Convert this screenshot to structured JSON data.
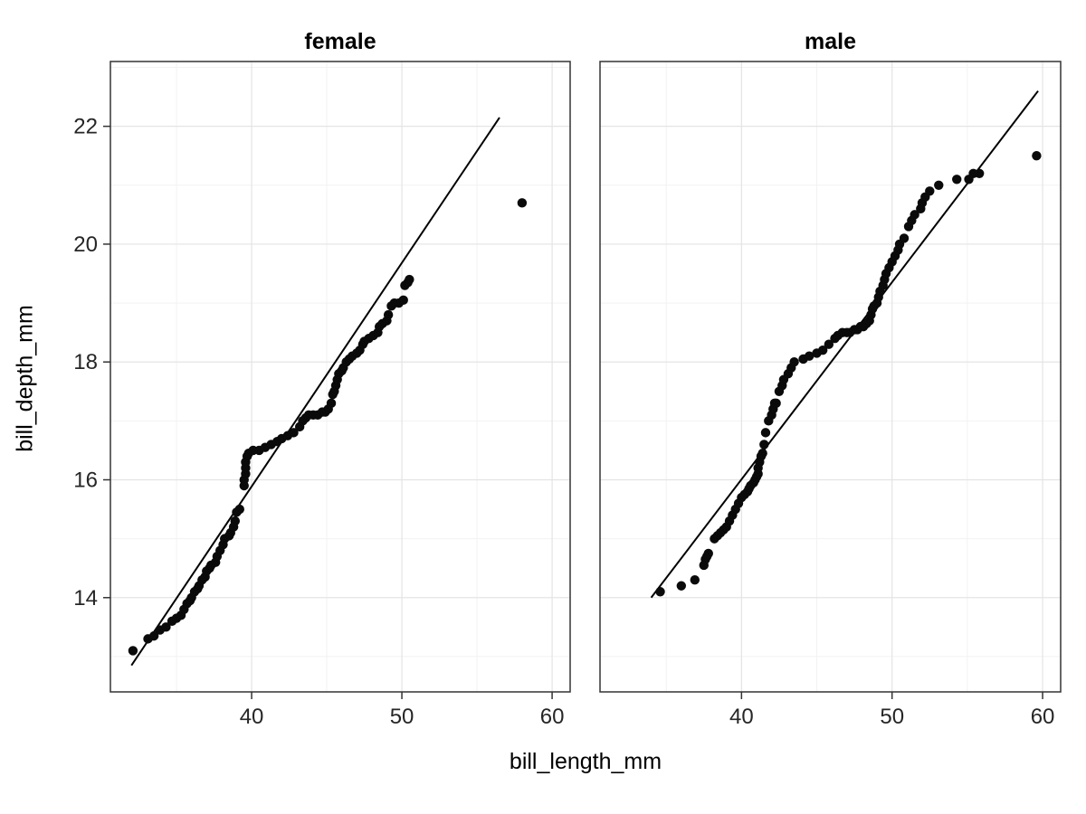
{
  "chart_data": {
    "type": "scatter",
    "title": "",
    "xlabel": "bill_length_mm",
    "ylabel": "bill_depth_mm",
    "x_domain": [
      30.6,
      61.2
    ],
    "y_domain": [
      12.4,
      23.1
    ],
    "x_ticks": [
      40,
      50,
      60
    ],
    "y_ticks": [
      14,
      16,
      18,
      20,
      22
    ],
    "grid": true,
    "legend": "none",
    "colors": {
      "point": "#0a0a0a",
      "line": "#000000",
      "grid_major": "#e4e4e4",
      "grid_minor": "#f2f2f2",
      "panel_border": "#333333",
      "tick": "#333333",
      "tick_label": "#262626",
      "background": "#ffffff"
    },
    "point_radius": 5.2,
    "facets": [
      {
        "title": "female",
        "line": {
          "x1": 32.0,
          "y1": 12.85,
          "x2": 56.5,
          "y2": 22.15
        },
        "points": [
          [
            32.1,
            13.1
          ],
          [
            33.1,
            13.3
          ],
          [
            33.5,
            13.35
          ],
          [
            33.9,
            13.45
          ],
          [
            34.3,
            13.5
          ],
          [
            34.7,
            13.6
          ],
          [
            35.0,
            13.65
          ],
          [
            35.3,
            13.7
          ],
          [
            35.5,
            13.8
          ],
          [
            35.7,
            13.9
          ],
          [
            35.9,
            13.95
          ],
          [
            36.0,
            14.0
          ],
          [
            36.2,
            14.1
          ],
          [
            36.4,
            14.15
          ],
          [
            36.5,
            14.2
          ],
          [
            36.7,
            14.3
          ],
          [
            36.9,
            14.35
          ],
          [
            37.0,
            14.45
          ],
          [
            37.2,
            14.5
          ],
          [
            37.3,
            14.55
          ],
          [
            37.6,
            14.6
          ],
          [
            37.7,
            14.7
          ],
          [
            37.9,
            14.8
          ],
          [
            38.1,
            14.9
          ],
          [
            38.2,
            15.0
          ],
          [
            38.5,
            15.05
          ],
          [
            38.6,
            15.1
          ],
          [
            38.8,
            15.2
          ],
          [
            38.9,
            15.3
          ],
          [
            39.0,
            15.45
          ],
          [
            39.2,
            15.5
          ],
          [
            39.5,
            15.9
          ],
          [
            39.5,
            16.0
          ],
          [
            39.6,
            16.1
          ],
          [
            39.6,
            16.2
          ],
          [
            39.6,
            16.3
          ],
          [
            39.7,
            16.4
          ],
          [
            39.8,
            16.45
          ],
          [
            40.1,
            16.5
          ],
          [
            40.5,
            16.5
          ],
          [
            40.9,
            16.55
          ],
          [
            41.3,
            16.6
          ],
          [
            41.7,
            16.65
          ],
          [
            42.0,
            16.7
          ],
          [
            42.4,
            16.75
          ],
          [
            42.8,
            16.8
          ],
          [
            43.2,
            16.9
          ],
          [
            43.4,
            17.0
          ],
          [
            43.6,
            17.05
          ],
          [
            43.8,
            17.1
          ],
          [
            44.1,
            17.1
          ],
          [
            44.4,
            17.1
          ],
          [
            44.7,
            17.15
          ],
          [
            44.9,
            17.15
          ],
          [
            45.1,
            17.2
          ],
          [
            45.3,
            17.3
          ],
          [
            45.4,
            17.45
          ],
          [
            45.5,
            17.5
          ],
          [
            45.6,
            17.6
          ],
          [
            45.7,
            17.7
          ],
          [
            45.8,
            17.8
          ],
          [
            46.0,
            17.85
          ],
          [
            46.1,
            17.9
          ],
          [
            46.3,
            18.0
          ],
          [
            46.5,
            18.05
          ],
          [
            46.7,
            18.1
          ],
          [
            47.0,
            18.15
          ],
          [
            47.2,
            18.2
          ],
          [
            47.4,
            18.3
          ],
          [
            47.5,
            18.35
          ],
          [
            47.8,
            18.4
          ],
          [
            48.1,
            18.45
          ],
          [
            48.4,
            18.5
          ],
          [
            48.5,
            18.6
          ],
          [
            48.7,
            18.65
          ],
          [
            49.0,
            18.7
          ],
          [
            49.1,
            18.8
          ],
          [
            49.3,
            18.95
          ],
          [
            49.5,
            19.0
          ],
          [
            49.8,
            19.0
          ],
          [
            50.1,
            19.05
          ],
          [
            50.2,
            19.3
          ],
          [
            50.4,
            19.35
          ],
          [
            50.5,
            19.4
          ],
          [
            58.0,
            20.7
          ]
        ]
      },
      {
        "title": "male",
        "line": {
          "x1": 34.0,
          "y1": 14.0,
          "x2": 59.7,
          "y2": 22.6
        },
        "points": [
          [
            34.6,
            14.1
          ],
          [
            36.0,
            14.2
          ],
          [
            36.9,
            14.3
          ],
          [
            37.5,
            14.55
          ],
          [
            37.6,
            14.65
          ],
          [
            37.7,
            14.7
          ],
          [
            37.8,
            14.75
          ],
          [
            38.2,
            15.0
          ],
          [
            38.4,
            15.05
          ],
          [
            38.6,
            15.1
          ],
          [
            38.8,
            15.15
          ],
          [
            39.0,
            15.2
          ],
          [
            39.2,
            15.3
          ],
          [
            39.4,
            15.4
          ],
          [
            39.6,
            15.5
          ],
          [
            39.8,
            15.6
          ],
          [
            40.0,
            15.7
          ],
          [
            40.2,
            15.75
          ],
          [
            40.4,
            15.8
          ],
          [
            40.5,
            15.85
          ],
          [
            40.6,
            15.9
          ],
          [
            40.8,
            15.95
          ],
          [
            40.9,
            16.0
          ],
          [
            41.0,
            16.05
          ],
          [
            41.1,
            16.1
          ],
          [
            41.1,
            16.2
          ],
          [
            41.2,
            16.3
          ],
          [
            41.3,
            16.4
          ],
          [
            41.4,
            16.45
          ],
          [
            41.5,
            16.6
          ],
          [
            41.6,
            16.8
          ],
          [
            41.8,
            17.0
          ],
          [
            42.0,
            17.1
          ],
          [
            42.1,
            17.2
          ],
          [
            42.2,
            17.3
          ],
          [
            42.3,
            17.3
          ],
          [
            42.5,
            17.5
          ],
          [
            42.7,
            17.6
          ],
          [
            42.8,
            17.7
          ],
          [
            43.1,
            17.8
          ],
          [
            43.3,
            17.9
          ],
          [
            43.5,
            18.0
          ],
          [
            44.1,
            18.05
          ],
          [
            44.5,
            18.1
          ],
          [
            45.0,
            18.15
          ],
          [
            45.4,
            18.2
          ],
          [
            45.8,
            18.3
          ],
          [
            46.2,
            18.4
          ],
          [
            46.4,
            18.45
          ],
          [
            46.7,
            18.5
          ],
          [
            47.0,
            18.5
          ],
          [
            47.2,
            18.5
          ],
          [
            47.5,
            18.55
          ],
          [
            47.7,
            18.55
          ],
          [
            47.9,
            18.6
          ],
          [
            48.1,
            18.6
          ],
          [
            48.3,
            18.65
          ],
          [
            48.5,
            18.7
          ],
          [
            48.6,
            18.8
          ],
          [
            48.7,
            18.9
          ],
          [
            48.8,
            18.95
          ],
          [
            49.0,
            19.0
          ],
          [
            49.1,
            19.1
          ],
          [
            49.2,
            19.2
          ],
          [
            49.4,
            19.3
          ],
          [
            49.5,
            19.4
          ],
          [
            49.6,
            19.5
          ],
          [
            49.8,
            19.6
          ],
          [
            50.0,
            19.7
          ],
          [
            50.2,
            19.8
          ],
          [
            50.4,
            19.9
          ],
          [
            50.5,
            20.0
          ],
          [
            50.8,
            20.1
          ],
          [
            51.1,
            20.3
          ],
          [
            51.3,
            20.4
          ],
          [
            51.5,
            20.5
          ],
          [
            51.9,
            20.6
          ],
          [
            52.0,
            20.7
          ],
          [
            52.2,
            20.8
          ],
          [
            52.5,
            20.9
          ],
          [
            53.1,
            21.0
          ],
          [
            54.3,
            21.1
          ],
          [
            55.1,
            21.1
          ],
          [
            55.4,
            21.2
          ],
          [
            55.8,
            21.2
          ],
          [
            59.6,
            21.5
          ]
        ]
      }
    ]
  }
}
